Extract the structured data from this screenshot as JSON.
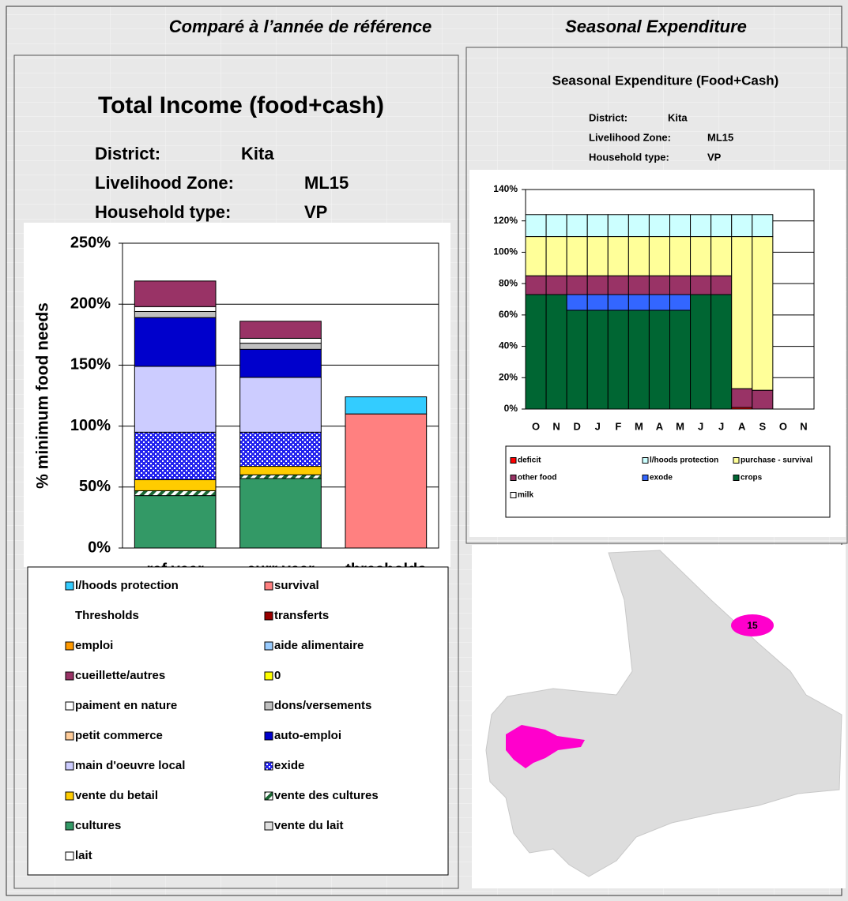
{
  "headers": {
    "left": "Comparé à l’année de référence",
    "right": "Seasonal Expenditure"
  },
  "chart_data": [
    {
      "type": "bar",
      "stacked": true,
      "title": "Total Income (food+cash)",
      "info": [
        [
          "District:",
          "Kita"
        ],
        [
          "Livelihood Zone:",
          "ML15"
        ],
        [
          "Household type:",
          "VP"
        ]
      ],
      "y_label": "% minimum food needs",
      "categories": [
        "ref year",
        "curr year",
        "thresholds"
      ],
      "ylim": [
        0,
        250
      ],
      "yticks": [
        {
          "value": 0,
          "label": "0%"
        },
        {
          "value": 50,
          "label": "50%"
        },
        {
          "value": 100,
          "label": "100%"
        },
        {
          "value": 150,
          "label": "150%"
        },
        {
          "value": 200,
          "label": "200%"
        },
        {
          "value": 250,
          "label": "250%"
        }
      ],
      "grid": true,
      "series": [
        {
          "name": "l/hoods protection",
          "color": "#33ccff",
          "values": [
            null,
            null,
            14
          ]
        },
        {
          "name": "survival",
          "color": "#ff8080",
          "values": [
            null,
            null,
            110
          ]
        },
        {
          "name": "Thresholds",
          "color": "none",
          "values": [
            null,
            null,
            null
          ]
        },
        {
          "name": "transferts",
          "color": "#990000",
          "values": [
            null,
            null,
            null
          ]
        },
        {
          "name": "emploi",
          "color": "#ff9900",
          "values": [
            null,
            null,
            null
          ]
        },
        {
          "name": "aide alimentaire",
          "color": "#99ccff",
          "values": [
            null,
            null,
            null
          ]
        },
        {
          "name": "cueillette/autres",
          "color": "#993366",
          "values": [
            21,
            14,
            null
          ]
        },
        {
          "name": "0",
          "color": "#ffff00",
          "values": [
            null,
            null,
            null
          ]
        },
        {
          "name": "paiment en nature",
          "color": "#ffffff",
          "values": [
            4,
            4,
            null
          ]
        },
        {
          "name": "dons/versements",
          "color": "#c0c0c0",
          "values": [
            5,
            5,
            null
          ]
        },
        {
          "name": "petit commerce",
          "color": "#ffcc99",
          "values": [
            null,
            null,
            null
          ]
        },
        {
          "name": "auto-emploi",
          "color": "#0000cc",
          "values": [
            40,
            23,
            null
          ]
        },
        {
          "name": "main d'oeuvre local",
          "color": "#ccccff",
          "values": [
            54,
            45,
            null
          ]
        },
        {
          "name": "exide",
          "color": "#3333ff",
          "pattern": "grid",
          "values": [
            39,
            28,
            null
          ]
        },
        {
          "name": "vente du betail",
          "color": "#ffcc00",
          "values": [
            9,
            7,
            null
          ]
        },
        {
          "name": "vente des cultures",
          "color": "#339966",
          "pattern": "hatch",
          "values": [
            4,
            3,
            null
          ]
        },
        {
          "name": "cultures",
          "color": "#339966",
          "values": [
            43,
            57,
            null
          ]
        },
        {
          "name": "vente du lait",
          "color": "#e0e0e0",
          "values": [
            null,
            null,
            null
          ]
        },
        {
          "name": "lait",
          "color": "#ffffff",
          "values": [
            null,
            null,
            null
          ]
        }
      ]
    },
    {
      "type": "bar",
      "stacked": true,
      "title": "Seasonal Expenditure (Food+Cash)",
      "info": [
        [
          "District:",
          "Kita"
        ],
        [
          "Livelihood Zone:",
          "ML15"
        ],
        [
          "Household type:",
          "VP"
        ]
      ],
      "categories": [
        "O",
        "N",
        "D",
        "J",
        "F",
        "M",
        "A",
        "M",
        "J",
        "J",
        "A",
        "S",
        "O",
        "N"
      ],
      "ylim": [
        0,
        140
      ],
      "yticks": [
        {
          "value": 0,
          "label": "0%"
        },
        {
          "value": 20,
          "label": "20%"
        },
        {
          "value": 40,
          "label": "40%"
        },
        {
          "value": 60,
          "label": "60%"
        },
        {
          "value": 80,
          "label": "80%"
        },
        {
          "value": 100,
          "label": "100%"
        },
        {
          "value": 120,
          "label": "120%"
        },
        {
          "value": 140,
          "label": "140%"
        }
      ],
      "grid": true,
      "series": [
        {
          "name": "deficit",
          "color": "#ff0000",
          "values": [
            null,
            null,
            null,
            null,
            null,
            null,
            null,
            null,
            null,
            null,
            1,
            null,
            null,
            null
          ]
        },
        {
          "name": "crops",
          "color": "#006633",
          "values": [
            73,
            73,
            63,
            63,
            63,
            63,
            63,
            63,
            73,
            73,
            null,
            null,
            null,
            null
          ]
        },
        {
          "name": "exode",
          "color": "#3366ff",
          "values": [
            null,
            null,
            10,
            10,
            10,
            10,
            10,
            10,
            null,
            null,
            null,
            null,
            null,
            null
          ]
        },
        {
          "name": "other food",
          "color": "#993366",
          "values": [
            12,
            12,
            12,
            12,
            12,
            12,
            12,
            12,
            12,
            12,
            12,
            12,
            null,
            null
          ]
        },
        {
          "name": "milk",
          "color": "#ffffff",
          "values": [
            null,
            null,
            null,
            null,
            null,
            null,
            null,
            null,
            null,
            null,
            null,
            null,
            null,
            null
          ]
        },
        {
          "name": "purchase - survival",
          "color": "#ffff99",
          "values": [
            25,
            25,
            25,
            25,
            25,
            25,
            25,
            25,
            25,
            25,
            97,
            98,
            null,
            null
          ]
        },
        {
          "name": "l/hoods protection",
          "color": "#ccffff",
          "values": [
            14,
            14,
            14,
            14,
            14,
            14,
            14,
            14,
            14,
            14,
            14,
            14,
            null,
            null
          ]
        }
      ]
    }
  ],
  "map": {
    "label": "15"
  }
}
